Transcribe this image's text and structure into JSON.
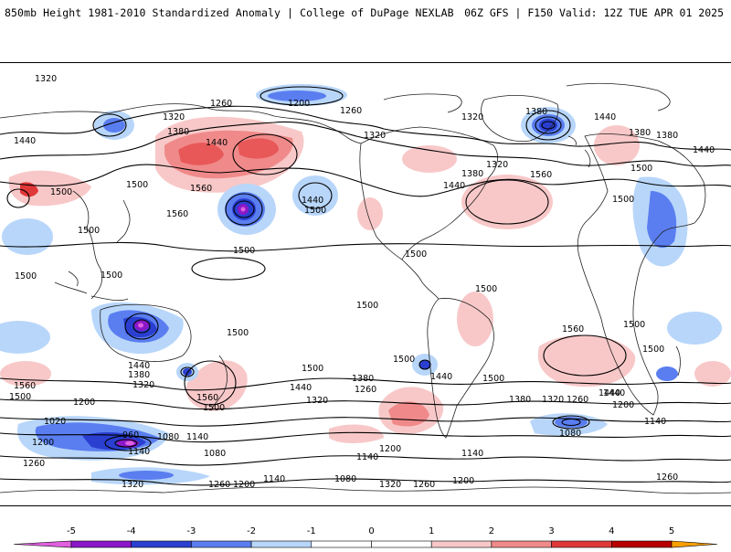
{
  "header": {
    "title_left": "850mb Height 1981-2010 Standardized Anomaly | College of DuPage NEXLAB",
    "title_right": "06Z GFS | F150 Valid: 12Z TUE APR 01 2025"
  },
  "colors": {
    "neg5": "#e060e0",
    "neg4": "#8a18c8",
    "neg3": "#2a3fd0",
    "neg2": "#5a7ef0",
    "neg1": "#b8d6fa",
    "pos1": "#f8c8c8",
    "pos2": "#f08a8a",
    "pos3": "#e03838",
    "pos4": "#b80000",
    "pos5": "#f8a000"
  },
  "colorbar": {
    "ticks": [
      "-5",
      "-4",
      "-3",
      "-2",
      "-1",
      "0",
      "1",
      "2",
      "3",
      "4",
      "5"
    ]
  },
  "contour_labels": [
    "1320",
    "1260",
    "1200",
    "1260",
    "1320",
    "1380",
    "1440",
    "1320",
    "1380",
    "1440",
    "1380",
    "1320",
    "1440",
    "1500",
    "1560",
    "1560",
    "1500",
    "1440",
    "1500",
    "1380",
    "1440",
    "1320",
    "1380",
    "1440",
    "1560",
    "1500",
    "1500",
    "1500",
    "1500",
    "1500",
    "1500",
    "1500",
    "1500",
    "1500",
    "1500",
    "1500",
    "1560",
    "1500",
    "1560",
    "1500",
    "1440",
    "1380",
    "1320",
    "1560",
    "1500",
    "1380",
    "1260",
    "1200",
    "1320",
    "1440",
    "1500",
    "1500",
    "1440",
    "1380",
    "1320",
    "1260",
    "1200",
    "1140",
    "1080",
    "1020",
    "960",
    "1200",
    "1140",
    "1080",
    "1140",
    "1260",
    "1320",
    "1260",
    "1200",
    "1140",
    "1080",
    "1320",
    "1260",
    "1200",
    "1140",
    "1080",
    "1200",
    "1140",
    "1260",
    "1500",
    "1440",
    "1440"
  ]
}
